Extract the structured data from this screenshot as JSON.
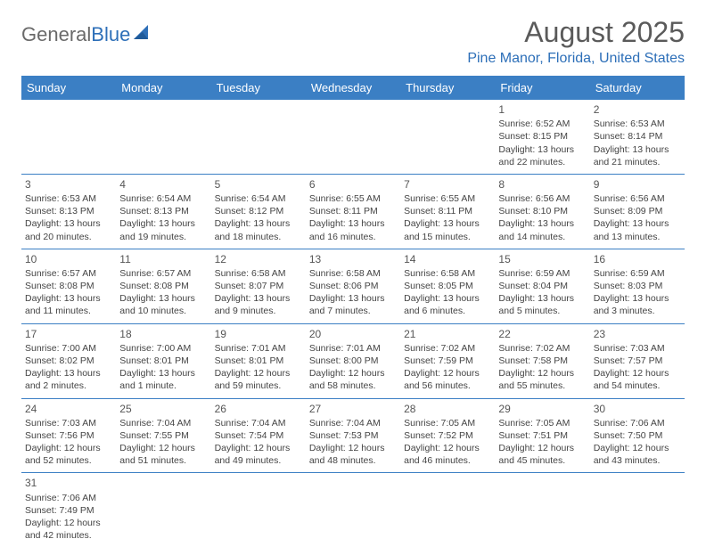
{
  "brand": {
    "part1": "General",
    "part2": "Blue"
  },
  "title": "August 2025",
  "location": "Pine Manor, Florida, United States",
  "colors": {
    "header_bg": "#3b7fc4",
    "header_text": "#ffffff",
    "accent": "#2d6fb8",
    "text": "#444444",
    "title_text": "#5a5a5a",
    "border": "#3b7fc4"
  },
  "day_names": [
    "Sunday",
    "Monday",
    "Tuesday",
    "Wednesday",
    "Thursday",
    "Friday",
    "Saturday"
  ],
  "weeks": [
    [
      null,
      null,
      null,
      null,
      null,
      {
        "day": "1",
        "sunrise": "Sunrise: 6:52 AM",
        "sunset": "Sunset: 8:15 PM",
        "daylight1": "Daylight: 13 hours",
        "daylight2": "and 22 minutes."
      },
      {
        "day": "2",
        "sunrise": "Sunrise: 6:53 AM",
        "sunset": "Sunset: 8:14 PM",
        "daylight1": "Daylight: 13 hours",
        "daylight2": "and 21 minutes."
      }
    ],
    [
      {
        "day": "3",
        "sunrise": "Sunrise: 6:53 AM",
        "sunset": "Sunset: 8:13 PM",
        "daylight1": "Daylight: 13 hours",
        "daylight2": "and 20 minutes."
      },
      {
        "day": "4",
        "sunrise": "Sunrise: 6:54 AM",
        "sunset": "Sunset: 8:13 PM",
        "daylight1": "Daylight: 13 hours",
        "daylight2": "and 19 minutes."
      },
      {
        "day": "5",
        "sunrise": "Sunrise: 6:54 AM",
        "sunset": "Sunset: 8:12 PM",
        "daylight1": "Daylight: 13 hours",
        "daylight2": "and 18 minutes."
      },
      {
        "day": "6",
        "sunrise": "Sunrise: 6:55 AM",
        "sunset": "Sunset: 8:11 PM",
        "daylight1": "Daylight: 13 hours",
        "daylight2": "and 16 minutes."
      },
      {
        "day": "7",
        "sunrise": "Sunrise: 6:55 AM",
        "sunset": "Sunset: 8:11 PM",
        "daylight1": "Daylight: 13 hours",
        "daylight2": "and 15 minutes."
      },
      {
        "day": "8",
        "sunrise": "Sunrise: 6:56 AM",
        "sunset": "Sunset: 8:10 PM",
        "daylight1": "Daylight: 13 hours",
        "daylight2": "and 14 minutes."
      },
      {
        "day": "9",
        "sunrise": "Sunrise: 6:56 AM",
        "sunset": "Sunset: 8:09 PM",
        "daylight1": "Daylight: 13 hours",
        "daylight2": "and 13 minutes."
      }
    ],
    [
      {
        "day": "10",
        "sunrise": "Sunrise: 6:57 AM",
        "sunset": "Sunset: 8:08 PM",
        "daylight1": "Daylight: 13 hours",
        "daylight2": "and 11 minutes."
      },
      {
        "day": "11",
        "sunrise": "Sunrise: 6:57 AM",
        "sunset": "Sunset: 8:08 PM",
        "daylight1": "Daylight: 13 hours",
        "daylight2": "and 10 minutes."
      },
      {
        "day": "12",
        "sunrise": "Sunrise: 6:58 AM",
        "sunset": "Sunset: 8:07 PM",
        "daylight1": "Daylight: 13 hours",
        "daylight2": "and 9 minutes."
      },
      {
        "day": "13",
        "sunrise": "Sunrise: 6:58 AM",
        "sunset": "Sunset: 8:06 PM",
        "daylight1": "Daylight: 13 hours",
        "daylight2": "and 7 minutes."
      },
      {
        "day": "14",
        "sunrise": "Sunrise: 6:58 AM",
        "sunset": "Sunset: 8:05 PM",
        "daylight1": "Daylight: 13 hours",
        "daylight2": "and 6 minutes."
      },
      {
        "day": "15",
        "sunrise": "Sunrise: 6:59 AM",
        "sunset": "Sunset: 8:04 PM",
        "daylight1": "Daylight: 13 hours",
        "daylight2": "and 5 minutes."
      },
      {
        "day": "16",
        "sunrise": "Sunrise: 6:59 AM",
        "sunset": "Sunset: 8:03 PM",
        "daylight1": "Daylight: 13 hours",
        "daylight2": "and 3 minutes."
      }
    ],
    [
      {
        "day": "17",
        "sunrise": "Sunrise: 7:00 AM",
        "sunset": "Sunset: 8:02 PM",
        "daylight1": "Daylight: 13 hours",
        "daylight2": "and 2 minutes."
      },
      {
        "day": "18",
        "sunrise": "Sunrise: 7:00 AM",
        "sunset": "Sunset: 8:01 PM",
        "daylight1": "Daylight: 13 hours",
        "daylight2": "and 1 minute."
      },
      {
        "day": "19",
        "sunrise": "Sunrise: 7:01 AM",
        "sunset": "Sunset: 8:01 PM",
        "daylight1": "Daylight: 12 hours",
        "daylight2": "and 59 minutes."
      },
      {
        "day": "20",
        "sunrise": "Sunrise: 7:01 AM",
        "sunset": "Sunset: 8:00 PM",
        "daylight1": "Daylight: 12 hours",
        "daylight2": "and 58 minutes."
      },
      {
        "day": "21",
        "sunrise": "Sunrise: 7:02 AM",
        "sunset": "Sunset: 7:59 PM",
        "daylight1": "Daylight: 12 hours",
        "daylight2": "and 56 minutes."
      },
      {
        "day": "22",
        "sunrise": "Sunrise: 7:02 AM",
        "sunset": "Sunset: 7:58 PM",
        "daylight1": "Daylight: 12 hours",
        "daylight2": "and 55 minutes."
      },
      {
        "day": "23",
        "sunrise": "Sunrise: 7:03 AM",
        "sunset": "Sunset: 7:57 PM",
        "daylight1": "Daylight: 12 hours",
        "daylight2": "and 54 minutes."
      }
    ],
    [
      {
        "day": "24",
        "sunrise": "Sunrise: 7:03 AM",
        "sunset": "Sunset: 7:56 PM",
        "daylight1": "Daylight: 12 hours",
        "daylight2": "and 52 minutes."
      },
      {
        "day": "25",
        "sunrise": "Sunrise: 7:04 AM",
        "sunset": "Sunset: 7:55 PM",
        "daylight1": "Daylight: 12 hours",
        "daylight2": "and 51 minutes."
      },
      {
        "day": "26",
        "sunrise": "Sunrise: 7:04 AM",
        "sunset": "Sunset: 7:54 PM",
        "daylight1": "Daylight: 12 hours",
        "daylight2": "and 49 minutes."
      },
      {
        "day": "27",
        "sunrise": "Sunrise: 7:04 AM",
        "sunset": "Sunset: 7:53 PM",
        "daylight1": "Daylight: 12 hours",
        "daylight2": "and 48 minutes."
      },
      {
        "day": "28",
        "sunrise": "Sunrise: 7:05 AM",
        "sunset": "Sunset: 7:52 PM",
        "daylight1": "Daylight: 12 hours",
        "daylight2": "and 46 minutes."
      },
      {
        "day": "29",
        "sunrise": "Sunrise: 7:05 AM",
        "sunset": "Sunset: 7:51 PM",
        "daylight1": "Daylight: 12 hours",
        "daylight2": "and 45 minutes."
      },
      {
        "day": "30",
        "sunrise": "Sunrise: 7:06 AM",
        "sunset": "Sunset: 7:50 PM",
        "daylight1": "Daylight: 12 hours",
        "daylight2": "and 43 minutes."
      }
    ],
    [
      {
        "day": "31",
        "sunrise": "Sunrise: 7:06 AM",
        "sunset": "Sunset: 7:49 PM",
        "daylight1": "Daylight: 12 hours",
        "daylight2": "and 42 minutes."
      },
      null,
      null,
      null,
      null,
      null,
      null
    ]
  ]
}
